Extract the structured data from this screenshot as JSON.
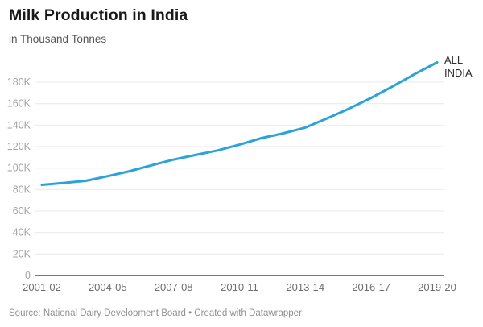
{
  "header": {
    "title": "Milk Production in India",
    "subtitle": "in Thousand Tonnes"
  },
  "annotation": {
    "series_label_line1": "ALL",
    "series_label_line2": "INDIA"
  },
  "footer": {
    "source": "Source: National Dairy Development Board • Created with Datawrapper"
  },
  "chart_data": {
    "type": "line",
    "title": "Milk Production in India",
    "subtitle": "in Thousand Tonnes",
    "ylabel": "Thousand Tonnes",
    "xlabel": "",
    "legend_position": "direct-label-right",
    "grid": true,
    "ylim": [
      0,
      200000
    ],
    "categories": [
      "2001-02",
      "2002-03",
      "2003-04",
      "2004-05",
      "2005-06",
      "2006-07",
      "2007-08",
      "2008-09",
      "2009-10",
      "2010-11",
      "2011-12",
      "2012-13",
      "2013-14",
      "2014-15",
      "2015-16",
      "2016-17",
      "2017-18",
      "2018-19",
      "2019-20"
    ],
    "series": [
      {
        "name": "ALL INDIA",
        "values": [
          84400,
          86200,
          88100,
          92500,
          97100,
          102600,
          107900,
          112200,
          116400,
          121800,
          127900,
          132400,
          137700,
          146300,
          155500,
          165400,
          176300,
          187700,
          198400
        ]
      }
    ],
    "x_tick_labels": [
      "2001-02",
      "2004-05",
      "2007-08",
      "2010-11",
      "2013-14",
      "2016-17",
      "2019-20"
    ],
    "x_tick_indices": [
      0,
      3,
      6,
      9,
      12,
      15,
      18
    ],
    "y_tick_labels": [
      "0",
      "20K",
      "40K",
      "60K",
      "80K",
      "100K",
      "120K",
      "140K",
      "160K",
      "180K"
    ],
    "y_tick_values": [
      0,
      20000,
      40000,
      60000,
      80000,
      100000,
      120000,
      140000,
      160000,
      180000
    ],
    "colors": {
      "line": "#2BA3DA",
      "grid": "#e9e9e9",
      "axis": "#4d4d4d",
      "y_tick": "#a2a2a2",
      "x_tick": "#6e6e6e",
      "title": "#191919",
      "subtitle": "#555555",
      "footer": "#909090",
      "series_label": "#2f2f2f"
    }
  }
}
